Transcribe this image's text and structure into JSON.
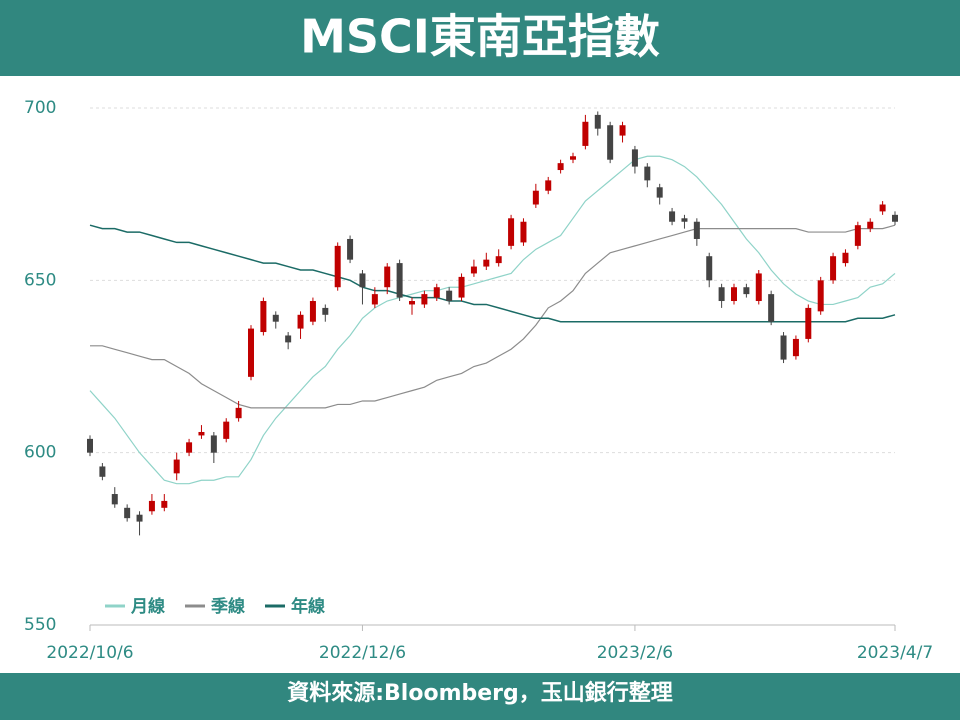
{
  "chart_data": {
    "type": "candlestick",
    "title": "MSCI東南亞指數",
    "source": "資料來源:Bloomberg，玉山銀行整理",
    "xlim": [
      0,
      65
    ],
    "xticks": [
      {
        "value": 0,
        "label": "2022/10/6"
      },
      {
        "value": 22,
        "label": "2022/12/6"
      },
      {
        "value": 44,
        "label": "2023/2/6"
      },
      {
        "value": 65,
        "label": "2023/4/7"
      }
    ],
    "ylim": [
      550,
      700
    ],
    "yticks": [
      550,
      600,
      650,
      700
    ],
    "grid": true,
    "legend": "lower-left",
    "up_color": "#c00000",
    "down_color": "#444444",
    "open": [
      604,
      596,
      588,
      584,
      582,
      583,
      584,
      594,
      600,
      605,
      605,
      604,
      610,
      622,
      635,
      640,
      634,
      636,
      638,
      642,
      648,
      662,
      652,
      643,
      648,
      655,
      643,
      643,
      645,
      647,
      645,
      652,
      654,
      655,
      660,
      661,
      672,
      676,
      682,
      685,
      689,
      698,
      695,
      692,
      688,
      683,
      677,
      670,
      668,
      667,
      657,
      648,
      644,
      648,
      644,
      646,
      634,
      628,
      633,
      641,
      650,
      655,
      660,
      665,
      670,
      669
    ],
    "high": [
      605,
      597,
      590,
      585,
      583,
      588,
      588,
      600,
      604,
      608,
      606,
      610,
      615,
      637,
      645,
      641,
      635,
      641,
      645,
      643,
      661,
      663,
      653,
      648,
      655,
      656,
      645,
      647,
      649,
      648,
      652,
      656,
      658,
      659,
      669,
      668,
      678,
      680,
      685,
      687,
      698,
      699,
      696,
      696,
      689,
      684,
      678,
      671,
      669,
      668,
      658,
      649,
      649,
      649,
      653,
      647,
      635,
      634,
      643,
      651,
      658,
      659,
      667,
      668,
      673,
      670
    ],
    "low": [
      599,
      592,
      584,
      580,
      576,
      582,
      583,
      592,
      599,
      604,
      597,
      603,
      609,
      621,
      634,
      636,
      630,
      633,
      637,
      638,
      647,
      655,
      643,
      642,
      646,
      644,
      640,
      642,
      644,
      643,
      644,
      651,
      653,
      654,
      659,
      660,
      671,
      675,
      681,
      684,
      688,
      692,
      684,
      690,
      681,
      677,
      672,
      666,
      665,
      660,
      648,
      642,
      643,
      645,
      643,
      637,
      626,
      627,
      632,
      640,
      649,
      654,
      659,
      664,
      669,
      666
    ],
    "close": [
      600,
      593,
      585,
      581,
      580,
      586,
      586,
      598,
      603,
      606,
      600,
      609,
      613,
      636,
      644,
      638,
      632,
      640,
      644,
      640,
      660,
      656,
      648,
      646,
      654,
      645,
      644,
      646,
      648,
      644,
      651,
      654,
      656,
      657,
      668,
      667,
      676,
      679,
      684,
      686,
      696,
      694,
      685,
      695,
      683,
      679,
      674,
      667,
      667,
      662,
      650,
      644,
      648,
      646,
      652,
      638,
      627,
      633,
      642,
      650,
      657,
      658,
      666,
      667,
      672,
      667
    ],
    "series": [
      {
        "name": "月線",
        "color": "#8fd3c8",
        "values": [
          618,
          614,
          610,
          605,
          600,
          596,
          592,
          591,
          591,
          592,
          592,
          593,
          593,
          598,
          605,
          610,
          614,
          618,
          622,
          625,
          630,
          634,
          639,
          642,
          644,
          645,
          646,
          647,
          647,
          648,
          648,
          649,
          650,
          651,
          652,
          656,
          659,
          661,
          663,
          668,
          673,
          676,
          679,
          682,
          685,
          686,
          686,
          685,
          683,
          680,
          676,
          672,
          667,
          662,
          658,
          653,
          649,
          646,
          644,
          643,
          643,
          644,
          645,
          648,
          649,
          652
        ]
      },
      {
        "name": "季線",
        "color": "#8c8c8c",
        "values": [
          631,
          631,
          630,
          629,
          628,
          627,
          627,
          625,
          623,
          620,
          618,
          616,
          614,
          613,
          613,
          613,
          613,
          613,
          613,
          613,
          614,
          614,
          615,
          615,
          616,
          617,
          618,
          619,
          621,
          622,
          623,
          625,
          626,
          628,
          630,
          633,
          637,
          642,
          644,
          647,
          652,
          655,
          658,
          659,
          660,
          661,
          662,
          663,
          664,
          665,
          665,
          665,
          665,
          665,
          665,
          665,
          665,
          665,
          664,
          664,
          664,
          664,
          665,
          665,
          665,
          666
        ]
      },
      {
        "name": "年線",
        "color": "#1b6b66",
        "values": [
          666,
          665,
          665,
          664,
          664,
          663,
          662,
          661,
          661,
          660,
          659,
          658,
          657,
          656,
          655,
          655,
          654,
          653,
          653,
          652,
          651,
          650,
          648,
          647,
          647,
          646,
          645,
          645,
          645,
          644,
          644,
          643,
          643,
          642,
          641,
          640,
          639,
          639,
          638,
          638,
          638,
          638,
          638,
          638,
          638,
          638,
          638,
          638,
          638,
          638,
          638,
          638,
          638,
          638,
          638,
          638,
          638,
          638,
          638,
          638,
          638,
          638,
          639,
          639,
          639,
          640
        ]
      }
    ]
  }
}
